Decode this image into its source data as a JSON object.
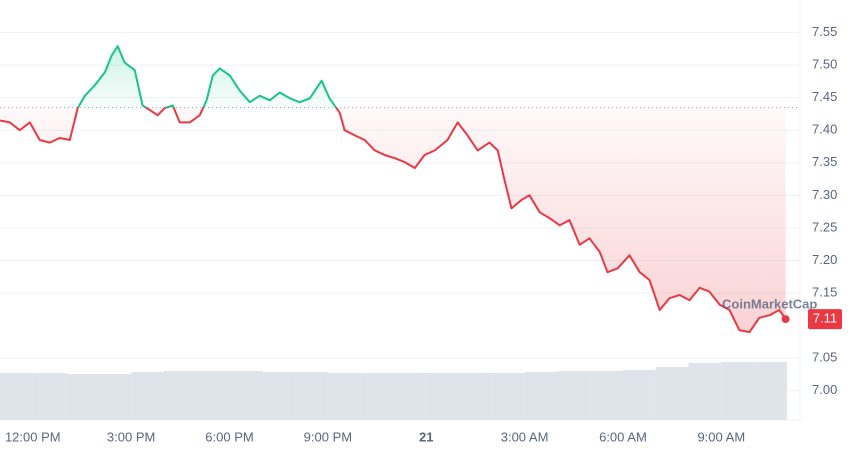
{
  "chart_data": {
    "type": "line",
    "x": [
      -1.0,
      -0.7,
      -0.4,
      -0.09,
      0.21,
      0.52,
      0.82,
      1.13,
      1.37,
      1.59,
      1.89,
      2.2,
      2.41,
      2.59,
      2.8,
      3.11,
      3.35,
      3.57,
      3.81,
      4.02,
      4.27,
      4.48,
      4.79,
      5.09,
      5.3,
      5.49,
      5.7,
      6.01,
      6.31,
      6.62,
      6.92,
      7.23,
      7.53,
      7.84,
      8.14,
      8.45,
      8.81,
      9.05,
      9.36,
      9.51,
      9.82,
      10.12,
      10.43,
      10.73,
      11.04,
      11.34,
      11.65,
      11.95,
      12.26,
      12.65,
      12.96,
      13.26,
      13.57,
      13.93,
      14.18,
      14.39,
      14.6,
      14.91,
      15.15,
      15.46,
      15.76,
      16.07,
      16.37,
      16.68,
      16.98,
      17.29,
      17.53,
      17.84,
      18.2,
      18.51,
      18.81,
      19.12,
      19.42,
      19.73,
      20.03,
      20.34,
      20.64,
      20.95,
      21.25,
      21.55,
      21.86,
      22.16,
      22.47,
      22.77,
      22.96
    ],
    "series": [
      {
        "values": [
          7.415,
          7.412,
          7.4,
          7.412,
          7.385,
          7.381,
          7.388,
          7.385,
          7.434,
          7.453,
          7.469,
          7.489,
          7.515,
          7.529,
          7.504,
          7.492,
          7.438,
          7.431,
          7.423,
          7.434,
          7.438,
          7.412,
          7.412,
          7.423,
          7.446,
          7.484,
          7.495,
          7.484,
          7.461,
          7.443,
          7.453,
          7.446,
          7.458,
          7.449,
          7.443,
          7.449,
          7.476,
          7.449,
          7.427,
          7.4,
          7.392,
          7.385,
          7.369,
          7.362,
          7.357,
          7.351,
          7.342,
          7.362,
          7.369,
          7.385,
          7.412,
          7.392,
          7.369,
          7.381,
          7.369,
          7.323,
          7.28,
          7.293,
          7.3,
          7.274,
          7.265,
          7.254,
          7.262,
          7.224,
          7.234,
          7.213,
          7.182,
          7.188,
          7.208,
          7.182,
          7.17,
          7.124,
          7.142,
          7.147,
          7.139,
          7.158,
          7.152,
          7.132,
          7.124,
          7.093,
          7.09,
          7.112,
          7.116,
          7.124,
          7.11
        ],
        "up_color": "#16c784",
        "down_color": "#ea3943"
      }
    ],
    "baseline": 7.435,
    "volume": {
      "x": [
        -0.5,
        0.5,
        1.5,
        2.5,
        3.5,
        4.5,
        5.5,
        6.5,
        7.5,
        8.5,
        9.5,
        10.5,
        11.5,
        12.5,
        13.5,
        14.5,
        15.5,
        16.5,
        17.5,
        18.5,
        19.5,
        20.5,
        21.5,
        22.5
      ],
      "values": [
        47,
        47,
        46,
        46,
        48,
        49,
        49,
        49,
        48,
        48,
        47,
        47,
        47,
        47,
        47,
        47,
        48,
        49,
        49,
        50,
        53,
        57,
        58,
        58
      ],
      "ylim": [
        0,
        100
      ],
      "color": "#dfe3ea"
    },
    "xlim": [
      -1.0,
      23.4
    ],
    "xticks": [
      {
        "value": 0,
        "label": "12:00 PM"
      },
      {
        "value": 3,
        "label": "3:00 PM"
      },
      {
        "value": 6,
        "label": "6:00 PM"
      },
      {
        "value": 9,
        "label": "9:00 PM"
      },
      {
        "value": 12,
        "label": "21"
      },
      {
        "value": 15,
        "label": "3:00 AM"
      },
      {
        "value": 18,
        "label": "6:00 AM"
      },
      {
        "value": 21,
        "label": "9:00 AM"
      }
    ],
    "ylim": [
      6.955,
      7.6
    ],
    "yticks": [
      7.55,
      {
        "value": 7.5,
        "label": "7.50"
      },
      7.45,
      {
        "value": 7.4,
        "label": "7.40"
      },
      7.35,
      {
        "value": 7.3,
        "label": "7.30"
      },
      7.25,
      {
        "value": 7.2,
        "label": "7.20"
      },
      7.15,
      7.05,
      {
        "value": 7.0,
        "label": "7.00"
      }
    ],
    "grid": true,
    "watermark": "CoinMarketCap"
  }
}
